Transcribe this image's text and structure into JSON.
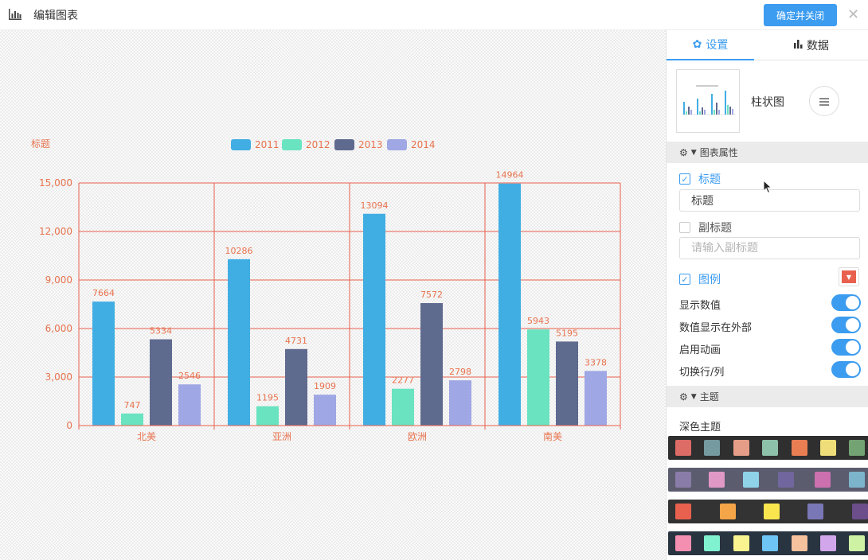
{
  "header": {
    "title": "编辑图表",
    "title_icon": "bar-chart-icon",
    "confirm_label": "确定并关闭",
    "close_icon": "close-icon"
  },
  "tabs": [
    {
      "label": "设置",
      "icon": "gear-icon",
      "active": true
    },
    {
      "label": "数据",
      "icon": "bar-chart-icon",
      "active": false
    }
  ],
  "chart_type": {
    "label": "柱状图",
    "switch_icon": "list-icon"
  },
  "sections": {
    "chart_props": "图表属性",
    "theme": "主题"
  },
  "options": {
    "title_check": {
      "label": "标题",
      "checked": true
    },
    "title_value": "标题",
    "subtitle_check": {
      "label": "副标题",
      "checked": false
    },
    "subtitle_placeholder": "请输入副标题",
    "legend_check": {
      "label": "图例",
      "checked": true
    },
    "toggles": [
      {
        "label": "显示数值",
        "on": true
      },
      {
        "label": "数值显示在外部",
        "on": true
      },
      {
        "label": "启用动画",
        "on": true
      },
      {
        "label": "切换行/列",
        "on": true
      }
    ]
  },
  "theme": {
    "dark_label": "深色主题",
    "palettes": [
      {
        "bg": "#2f2f2f",
        "colors": [
          "#dd6b66",
          "#759aa0",
          "#e69d87",
          "#8dc1a9",
          "#ea7e53",
          "#eedd78",
          "#73a373"
        ]
      },
      {
        "bg": "#5b5c6e",
        "colors": [
          "#8a7ca8",
          "#e098c7",
          "#8fd3e8",
          "#71669e",
          "#cc70af",
          "#7cb4cc"
        ]
      },
      {
        "bg": "#333333",
        "colors": [
          "#e8614e",
          "#f4a548",
          "#f9e64f",
          "#7a77b6",
          "#6b4e8a"
        ]
      },
      {
        "bg": "#293441",
        "colors": [
          "#f48fb1",
          "#80f2d0",
          "#f9f48f",
          "#6ec5f5",
          "#f6c19d",
          "#d2a6ea",
          "#cdf2a4"
        ]
      }
    ]
  },
  "colors": {
    "accent": "#3c9cf0",
    "chart_text": "#e8734e",
    "chart_grid": "#e8614e"
  },
  "chart_data": {
    "type": "bar",
    "title": "标题",
    "categories": [
      "北美",
      "亚洲",
      "欧洲",
      "南美"
    ],
    "series": [
      {
        "name": "2011",
        "color": "#41aee3",
        "values": [
          7664,
          10286,
          13094,
          14964
        ]
      },
      {
        "name": "2012",
        "color": "#69e3c0",
        "values": [
          747,
          1195,
          2277,
          5943
        ]
      },
      {
        "name": "2013",
        "color": "#5f6a8f",
        "values": [
          5334,
          4731,
          7572,
          5195
        ]
      },
      {
        "name": "2014",
        "color": "#9fa7e4",
        "values": [
          2546,
          1909,
          2798,
          3378
        ]
      }
    ],
    "yticks": [
      "0",
      "3,000",
      "6,000",
      "9,000",
      "12,000",
      "15,000"
    ],
    "ylim": [
      0,
      15000
    ],
    "legend_position": "top-center",
    "grid": true,
    "show_values": true
  }
}
